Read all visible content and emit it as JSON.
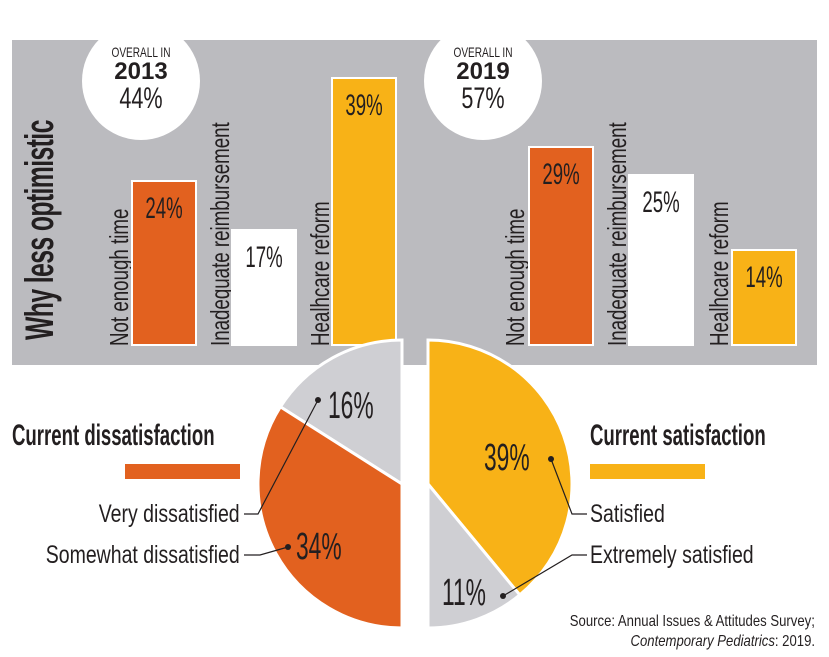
{
  "colors": {
    "panel": "#bbbbbf",
    "orange": "#e2611f",
    "yellow": "#f8b217",
    "white": "#ffffff",
    "gray": "#cfcfd3",
    "text": "#231f20"
  },
  "title": "Why less optimistic",
  "chart_data": [
    {
      "type": "bar",
      "title": "Why less optimistic",
      "subtitle": "OVERALL IN 2013 44%",
      "overall": {
        "label": "OVERALL IN",
        "year": "2013",
        "value": "44%"
      },
      "categories": [
        "Not enough time",
        "Inadequate reimbursement",
        "Healhcare reform"
      ],
      "values": [
        24,
        17,
        39
      ],
      "value_labels": [
        "24%",
        "17%",
        "39%"
      ],
      "bar_colors": [
        "#e2611f",
        "#ffffff",
        "#f8b217"
      ],
      "ylim": [
        0,
        39
      ],
      "xlabel": "",
      "ylabel": ""
    },
    {
      "type": "bar",
      "subtitle": "OVERALL IN 2019 57%",
      "overall": {
        "label": "OVERALL IN",
        "year": "2019",
        "value": "57%"
      },
      "categories": [
        "Not enough time",
        "Inadequate reimbursement",
        "Healhcare reform"
      ],
      "values": [
        29,
        25,
        14
      ],
      "value_labels": [
        "29%",
        "25%",
        "14%"
      ],
      "bar_colors": [
        "#e2611f",
        "#ffffff",
        "#f8b217"
      ],
      "ylim": [
        0,
        29
      ],
      "xlabel": "",
      "ylabel": ""
    },
    {
      "type": "pie",
      "title": "Current dissatisfaction",
      "slices": [
        {
          "label": "Very dissatisfied",
          "value": 16,
          "value_label": "16%",
          "color": "#cfcfd3"
        },
        {
          "label": "Somewhat dissatisfied",
          "value": 34,
          "value_label": "34%",
          "color": "#e2611f"
        }
      ],
      "legend_color": "#e2611f",
      "half": "left"
    },
    {
      "type": "pie",
      "title": "Current satisfaction",
      "slices": [
        {
          "label": "Satisfied",
          "value": 39,
          "value_label": "39%",
          "color": "#f8b217"
        },
        {
          "label": "Extremely satisfied",
          "value": 11,
          "value_label": "11%",
          "color": "#cfcfd3"
        }
      ],
      "legend_color": "#f8b217",
      "half": "right"
    }
  ],
  "source": {
    "line1": "Source: Annual Issues & Attitudes Survey;",
    "line2_italic": "Contemporary Pediatrics",
    "line2_rest": ": 2019."
  }
}
